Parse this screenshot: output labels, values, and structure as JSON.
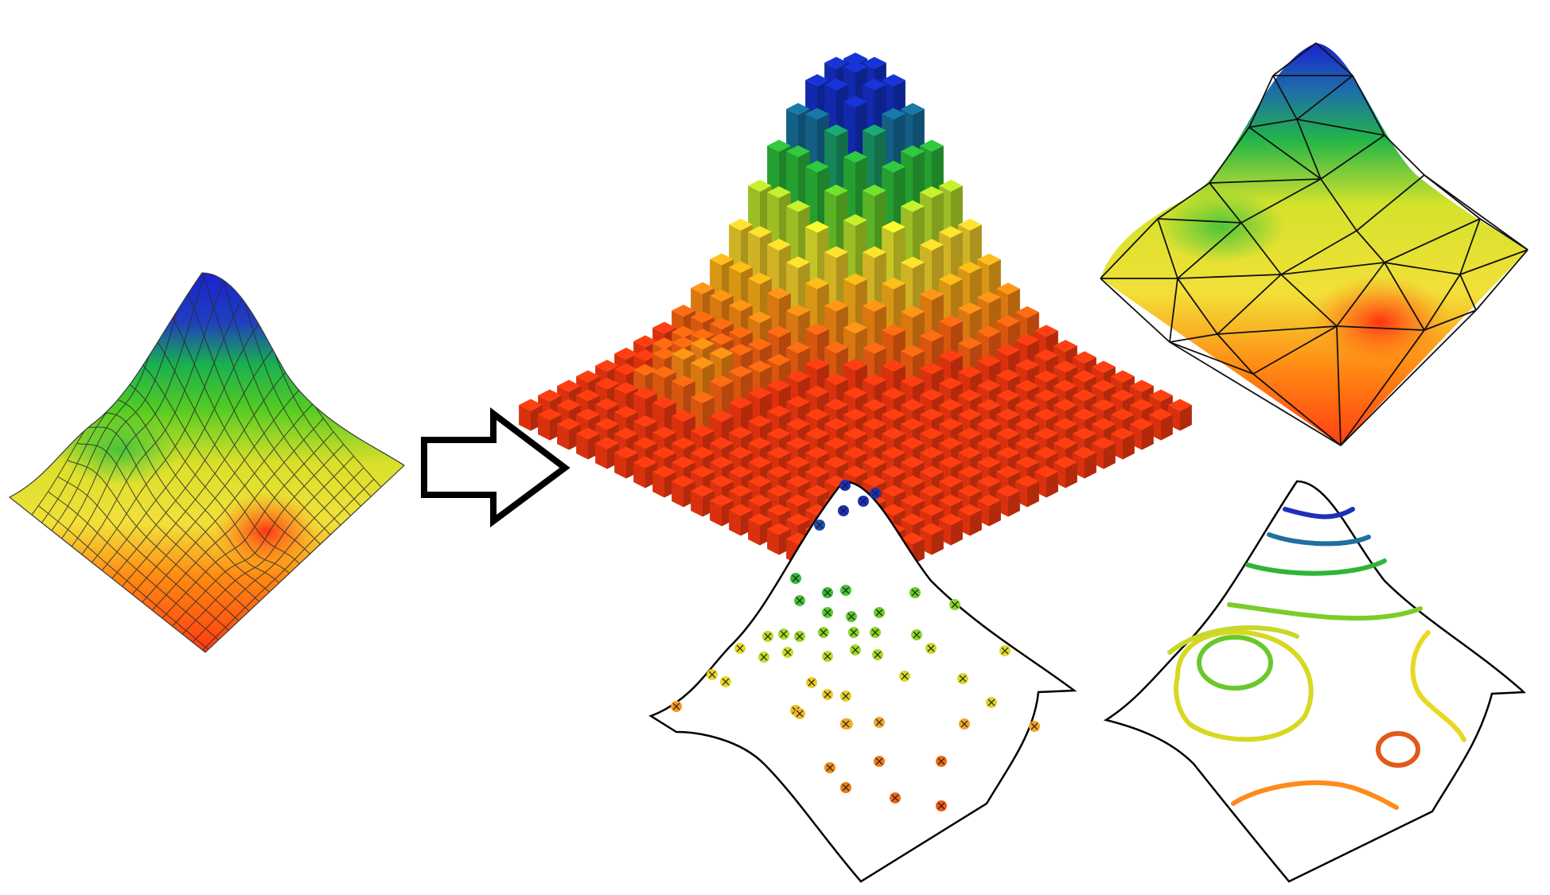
{
  "figure": {
    "source": {
      "representation": "mesh-surface",
      "colormap": [
        "#1e2fd6",
        "#1aa83a",
        "#e8e22a",
        "#ff3b12"
      ]
    },
    "arrow": {
      "icon": "right-arrow-icon"
    },
    "outputs": [
      {
        "representation": "voxel-columns"
      },
      {
        "representation": "triangulated-irregular-network"
      },
      {
        "representation": "scattered-sample-points"
      },
      {
        "representation": "contour-lines"
      }
    ]
  }
}
